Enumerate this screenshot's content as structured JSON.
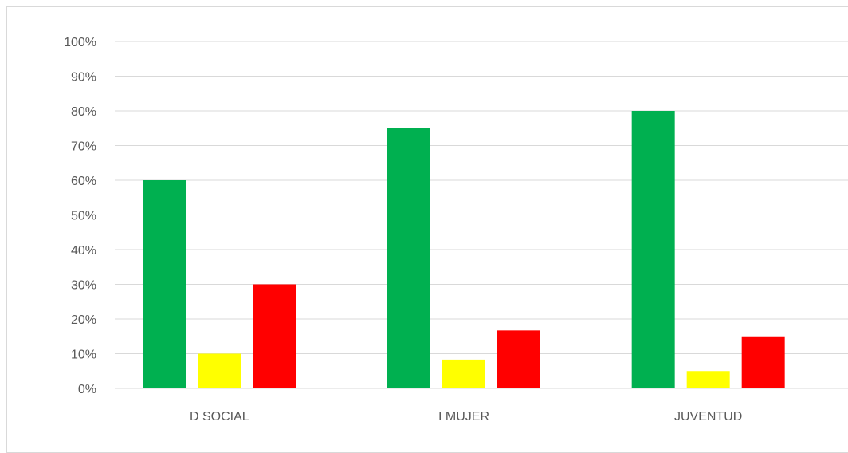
{
  "chart_data": {
    "type": "bar",
    "categories": [
      "D SOCIAL",
      "I MUJER",
      "JUVENTUD"
    ],
    "series": [
      {
        "color": "#00B050",
        "values": [
          60,
          75,
          80
        ]
      },
      {
        "color": "#FFFF00",
        "values": [
          10,
          8.3,
          5
        ]
      },
      {
        "color": "#FF0000",
        "values": [
          30,
          16.7,
          15
        ]
      }
    ],
    "ylim": [
      0,
      100
    ],
    "yticks": [
      "0%",
      "10%",
      "20%",
      "30%",
      "40%",
      "50%",
      "60%",
      "70%",
      "80%",
      "90%",
      "100%"
    ],
    "grid": true,
    "gridline_color": "#d9d9d9",
    "axis_label_color": "#595959",
    "xlabel": "",
    "ylabel": "",
    "title": ""
  }
}
